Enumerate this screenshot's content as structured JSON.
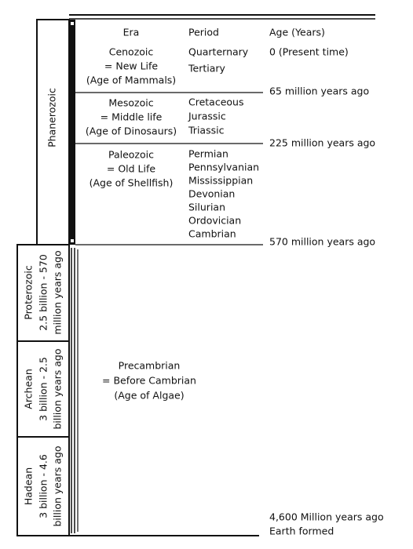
{
  "header": {
    "era": "Era",
    "period": "Period",
    "age": "Age (Years)"
  },
  "eon_phanerozoic": "Phanerozoic",
  "eras": [
    {
      "name": "Cenozoic",
      "meaning": "= New Life",
      "nickname": "(Age of Mammals)",
      "periods": [
        "Quarternary",
        "Tertiary"
      ]
    },
    {
      "name": "Mesozoic",
      "meaning": "= Middle life",
      "nickname": "(Age of Dinosaurs)",
      "periods": [
        "Cretaceous",
        "Jurassic",
        "Triassic"
      ]
    },
    {
      "name": "Paleozoic",
      "meaning": "= Old Life",
      "nickname": "(Age of Shellfish)",
      "periods": [
        "Permian",
        "Pennsylvanian",
        "Mississippian",
        "Devonian",
        "Silurian",
        "Ordovician",
        "Cambrian"
      ]
    }
  ],
  "ages": [
    "0 (Present time)",
    "65 million years ago",
    "225 million years ago",
    "570 million years ago",
    "4,600 Million years ago",
    "Earth formed"
  ],
  "precambrian": {
    "name": "Precambrian",
    "meaning": "= Before Cambrian",
    "nickname": "(Age of Algae)"
  },
  "eons": [
    {
      "name": "Proterozoic",
      "span": [
        "2.5 billion - 570",
        "million years ago"
      ]
    },
    {
      "name": "Archean",
      "span": [
        "3 billion - 2.5",
        "billion years ago"
      ]
    },
    {
      "name": "Hadean",
      "span": [
        "3 billion - 4.6",
        "billion years ago"
      ]
    }
  ]
}
